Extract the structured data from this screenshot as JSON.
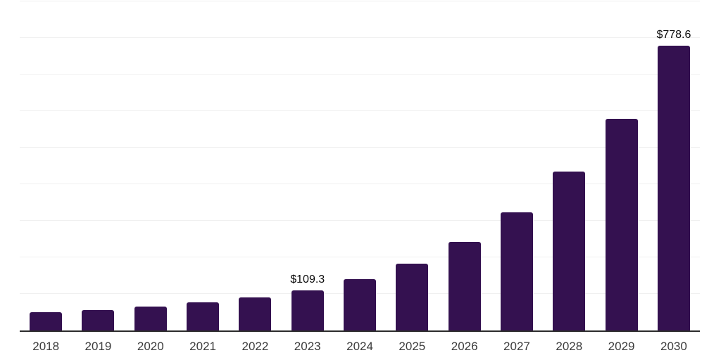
{
  "chart_data": {
    "type": "bar",
    "title": "",
    "xlabel": "",
    "ylabel": "",
    "categories": [
      "2018",
      "2019",
      "2020",
      "2021",
      "2022",
      "2023",
      "2024",
      "2025",
      "2026",
      "2027",
      "2028",
      "2029",
      "2030"
    ],
    "values": [
      50,
      56,
      65,
      77,
      90,
      109.3,
      140,
      182,
      243,
      324,
      435,
      578,
      778.6
    ],
    "value_labels": [
      {
        "category": "2023",
        "text": "$109.3"
      },
      {
        "category": "2030",
        "text": "$778.6"
      }
    ],
    "ylim": [
      0,
      900
    ],
    "gridline_step": 100,
    "grid": true,
    "legend": false
  },
  "colors": {
    "bar": "#341150",
    "axis": "#2b2b2b",
    "gridline": "#f0f0f0",
    "tick_label": "#3b3b3b",
    "value_label": "#0a0a0a",
    "background": "#ffffff"
  }
}
